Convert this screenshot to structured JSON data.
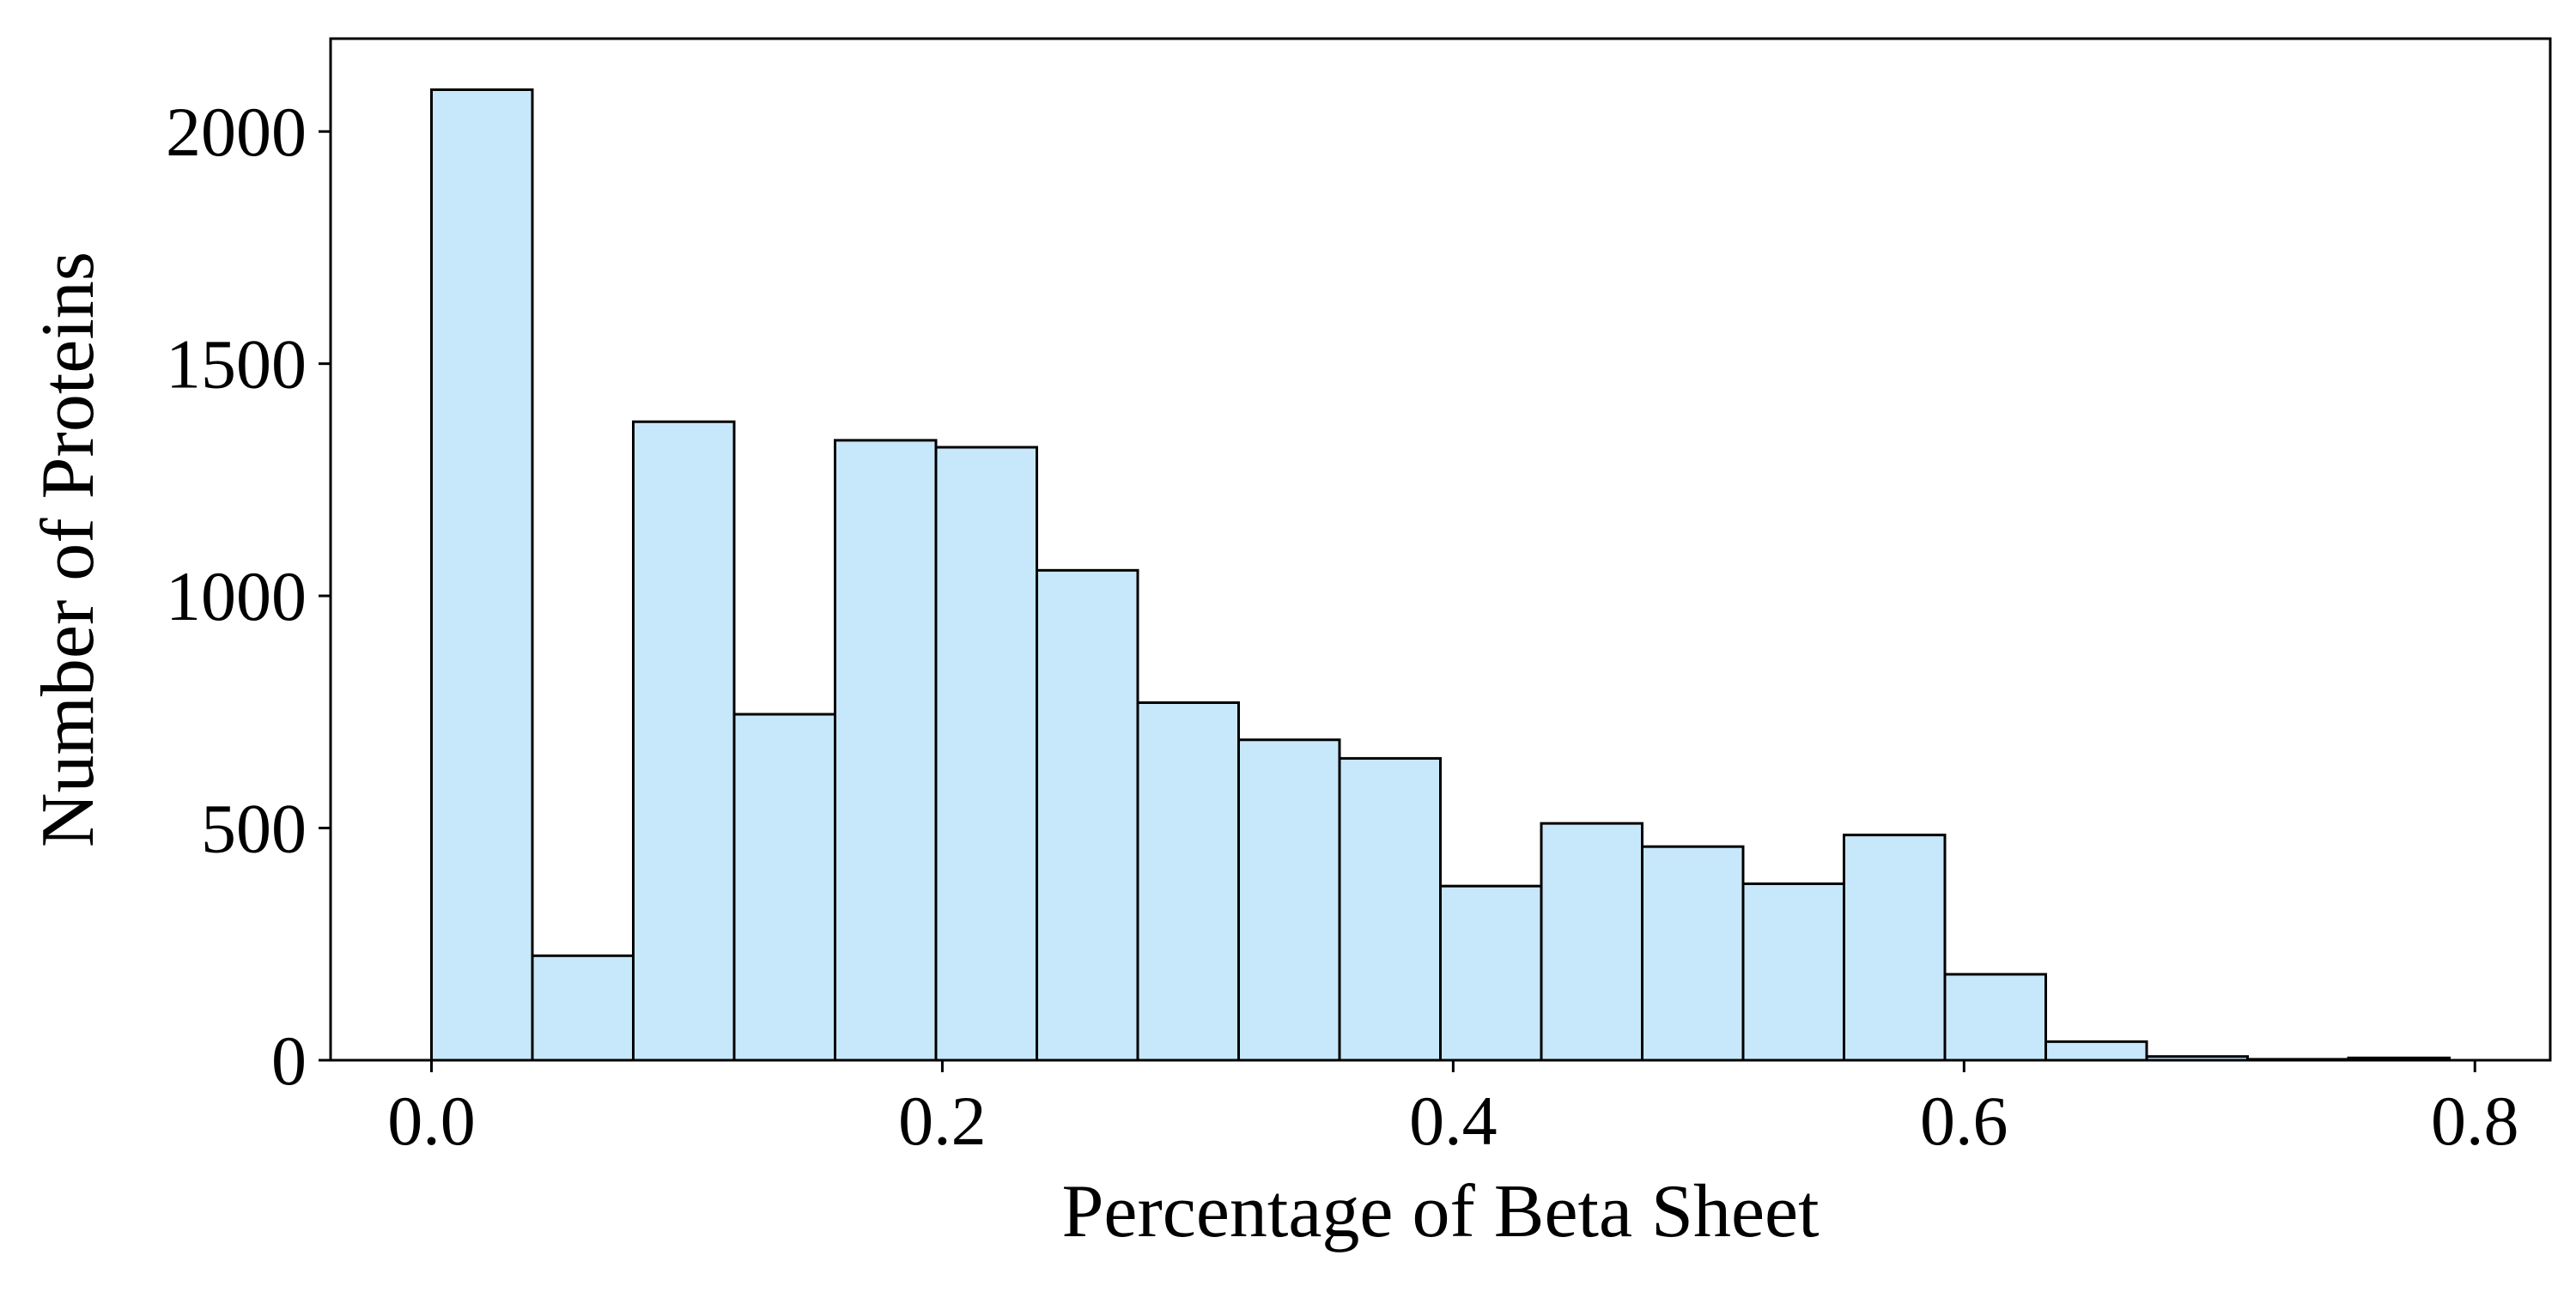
{
  "chart_data": {
    "type": "bar",
    "histogram": true,
    "title": "",
    "xlabel": "Percentage of Beta Sheet",
    "ylabel": "Number of Proteins",
    "bin_edges": [
      0.0,
      0.0395,
      0.079,
      0.1185,
      0.158,
      0.1975,
      0.237,
      0.2765,
      0.316,
      0.3555,
      0.395,
      0.4345,
      0.474,
      0.5135,
      0.553,
      0.5925,
      0.632,
      0.6715,
      0.711,
      0.7505,
      0.79
    ],
    "values": [
      2090,
      225,
      1375,
      745,
      1335,
      1320,
      1055,
      770,
      690,
      650,
      375,
      510,
      460,
      380,
      485,
      185,
      40,
      8,
      2,
      5
    ],
    "xlim": [
      -0.0395,
      0.8295
    ],
    "ylim": [
      0,
      2200
    ],
    "x_ticks": [
      0.0,
      0.2,
      0.4,
      0.6,
      0.8
    ],
    "x_tick_labels": [
      "0.0",
      "0.2",
      "0.4",
      "0.6",
      "0.8"
    ],
    "y_ticks": [
      0,
      500,
      1000,
      1500,
      2000
    ],
    "y_tick_labels": [
      "0",
      "500",
      "1000",
      "1500",
      "2000"
    ],
    "colors": {
      "bar_fill": "#c7e8fa",
      "bar_edge": "#000000",
      "axis": "#000000"
    },
    "grid": false,
    "legend": null
  }
}
